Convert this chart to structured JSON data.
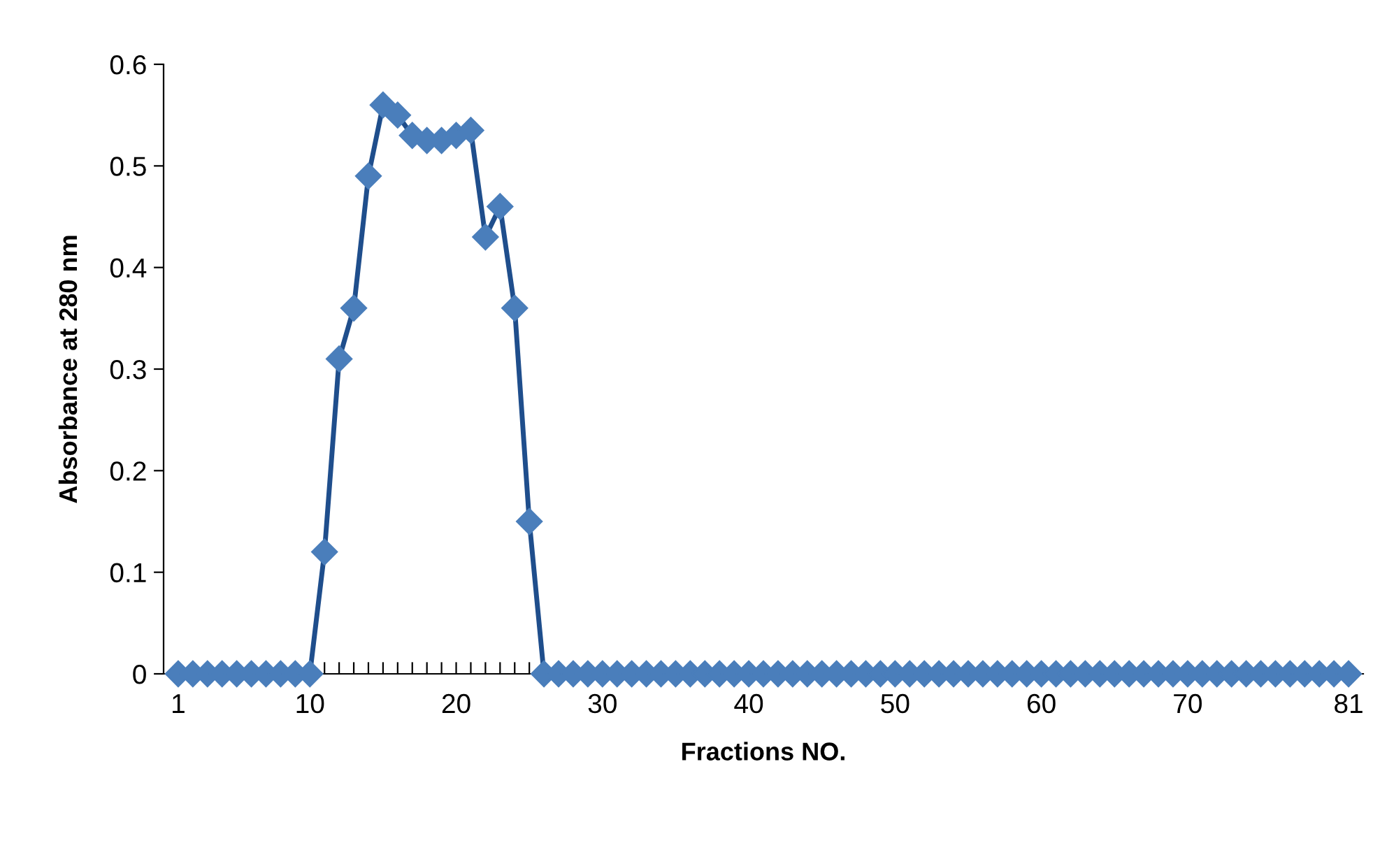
{
  "chart_data": {
    "type": "line",
    "xlabel": "Fractions NO.",
    "ylabel": "Absorbance at 280 nm",
    "x": [
      1,
      2,
      3,
      4,
      5,
      6,
      7,
      8,
      9,
      10,
      11,
      12,
      13,
      14,
      15,
      16,
      17,
      18,
      19,
      20,
      21,
      22,
      23,
      24,
      25,
      26,
      27,
      28,
      29,
      30,
      31,
      32,
      33,
      34,
      35,
      36,
      37,
      38,
      39,
      40,
      41,
      42,
      43,
      44,
      45,
      46,
      47,
      48,
      49,
      50,
      51,
      52,
      53,
      54,
      55,
      56,
      57,
      58,
      59,
      60,
      61,
      62,
      63,
      64,
      65,
      66,
      67,
      68,
      69,
      70,
      71,
      72,
      73,
      74,
      75,
      76,
      77,
      78,
      79,
      80,
      81
    ],
    "series": [
      {
        "color": "#4a7ebb",
        "values": [
          0,
          0,
          0,
          0,
          0,
          0,
          0,
          0,
          0,
          0,
          0.12,
          0.31,
          0.36,
          0.49,
          0.56,
          0.55,
          0.53,
          0.525,
          0.525,
          0.53,
          0.535,
          0.43,
          0.46,
          0.36,
          0.15,
          0,
          0,
          0,
          0,
          0,
          0,
          0,
          0,
          0,
          0,
          0,
          0,
          0,
          0,
          0,
          0,
          0,
          0,
          0,
          0,
          0,
          0,
          0,
          0,
          0,
          0,
          0,
          0,
          0,
          0,
          0,
          0,
          0,
          0,
          0,
          0,
          0,
          0,
          0,
          0,
          0,
          0,
          0,
          0,
          0,
          0,
          0,
          0,
          0,
          0,
          0,
          0,
          0,
          0,
          0,
          0
        ]
      }
    ],
    "xlim": [
      0,
      82
    ],
    "xticks": [
      1,
      {
        "value": 2,
        "label": null
      },
      {
        "value": 3,
        "label": null
      },
      {
        "value": 4,
        "label": null
      },
      {
        "value": 5,
        "label": null
      },
      {
        "value": 6,
        "label": null
      },
      {
        "value": 7,
        "label": null
      },
      {
        "value": 8,
        "label": null
      },
      {
        "value": 9,
        "label": null
      },
      10,
      {
        "value": 11,
        "label": null
      },
      {
        "value": 12,
        "label": null
      },
      {
        "value": 13,
        "label": null
      },
      {
        "value": 14,
        "label": null
      },
      {
        "value": 15,
        "label": null
      },
      {
        "value": 16,
        "label": null
      },
      {
        "value": 17,
        "label": null
      },
      {
        "value": 18,
        "label": null
      },
      {
        "value": 19,
        "label": null
      },
      20,
      {
        "value": 21,
        "label": null
      },
      {
        "value": 22,
        "label": null
      },
      {
        "value": 23,
        "label": null
      },
      {
        "value": 24,
        "label": null
      },
      {
        "value": 25,
        "label": null
      },
      {
        "value": 26,
        "label": null
      },
      {
        "value": 27,
        "label": null
      },
      {
        "value": 28,
        "label": null
      },
      {
        "value": 29,
        "label": null
      },
      30,
      {
        "value": 31,
        "label": null
      },
      {
        "value": 32,
        "label": null
      },
      {
        "value": 33,
        "label": null
      },
      {
        "value": 34,
        "label": null
      },
      {
        "value": 35,
        "label": null
      },
      {
        "value": 36,
        "label": null
      },
      {
        "value": 37,
        "label": null
      },
      {
        "value": 38,
        "label": null
      },
      {
        "value": 39,
        "label": null
      },
      40,
      {
        "value": 41,
        "label": null
      },
      {
        "value": 42,
        "label": null
      },
      {
        "value": 43,
        "label": null
      },
      {
        "value": 44,
        "label": null
      },
      {
        "value": 45,
        "label": null
      },
      {
        "value": 46,
        "label": null
      },
      {
        "value": 47,
        "label": null
      },
      {
        "value": 48,
        "label": null
      },
      {
        "value": 49,
        "label": null
      },
      50,
      {
        "value": 51,
        "label": null
      },
      {
        "value": 52,
        "label": null
      },
      {
        "value": 53,
        "label": null
      },
      {
        "value": 54,
        "label": null
      },
      {
        "value": 55,
        "label": null
      },
      {
        "value": 56,
        "label": null
      },
      {
        "value": 57,
        "label": null
      },
      {
        "value": 58,
        "label": null
      },
      {
        "value": 59,
        "label": null
      },
      60,
      {
        "value": 61,
        "label": null
      },
      {
        "value": 62,
        "label": null
      },
      {
        "value": 63,
        "label": null
      },
      {
        "value": 64,
        "label": null
      },
      {
        "value": 65,
        "label": null
      },
      {
        "value": 66,
        "label": null
      },
      {
        "value": 67,
        "label": null
      },
      {
        "value": 68,
        "label": null
      },
      {
        "value": 69,
        "label": null
      },
      70,
      {
        "value": 71,
        "label": null
      },
      {
        "value": 72,
        "label": null
      },
      {
        "value": 73,
        "label": null
      },
      {
        "value": 74,
        "label": null
      },
      {
        "value": 75,
        "label": null
      },
      {
        "value": 76,
        "label": null
      },
      {
        "value": 77,
        "label": null
      },
      {
        "value": 78,
        "label": null
      },
      {
        "value": 79,
        "label": null
      },
      {
        "value": 80,
        "label": null
      },
      81
    ],
    "ylim": [
      0,
      0.6
    ],
    "yticks": [
      0,
      0.1,
      0.2,
      0.3,
      0.4,
      0.5,
      0.6
    ],
    "grid": false,
    "legend": false,
    "marker": "diamond",
    "line_style": "solid"
  }
}
